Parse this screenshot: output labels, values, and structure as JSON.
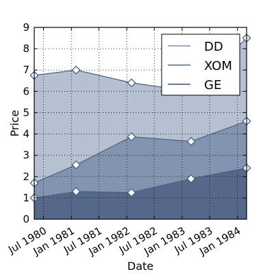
{
  "chart_data": {
    "type": "area",
    "stacked": true,
    "xlabel": "Date",
    "ylabel": "Price",
    "x": [
      "1980-05-01",
      "1981-02-01",
      "1982-02-01",
      "1983-03-01",
      "1984-03-01"
    ],
    "x_ticks": [
      "1980-07-01",
      "1981-01-01",
      "1981-07-01",
      "1982-01-01",
      "1982-07-01",
      "1983-01-01",
      "1983-07-01",
      "1984-01-01"
    ],
    "x_tick_labels": [
      "Jul 1980",
      "Jan 1981",
      "Jul 1981",
      "Jan 1982",
      "Jul 1982",
      "Jan 1983",
      "Jul 1983",
      "Jan 1984"
    ],
    "xlim": [
      "1980-05-01",
      "1984-03-01"
    ],
    "ylim": [
      0,
      9
    ],
    "y_ticks": [
      0,
      1,
      2,
      3,
      4,
      5,
      6,
      7,
      8,
      9
    ],
    "grid": true,
    "grid_style": "dotted",
    "legend_position": "top-right",
    "series": [
      {
        "name": "GE",
        "values": [
          1.0,
          1.3,
          1.25,
          1.9,
          2.4
        ],
        "color": "#56688a"
      },
      {
        "name": "XOM",
        "values": [
          0.7,
          1.25,
          2.62,
          1.75,
          2.2
        ],
        "color": "#8394b0"
      },
      {
        "name": "DD",
        "values": [
          5.05,
          4.45,
          2.53,
          2.35,
          3.9
        ],
        "color": "#b5c0d1"
      }
    ],
    "legend": [
      "DD",
      "XOM",
      "GE"
    ]
  },
  "colors": {
    "line": "#4a5f80",
    "marker_fill": "#ffffff",
    "legend_DD": "#7d8fae",
    "legend_XOM": "#52688c",
    "legend_GE": "#3a4f70"
  }
}
